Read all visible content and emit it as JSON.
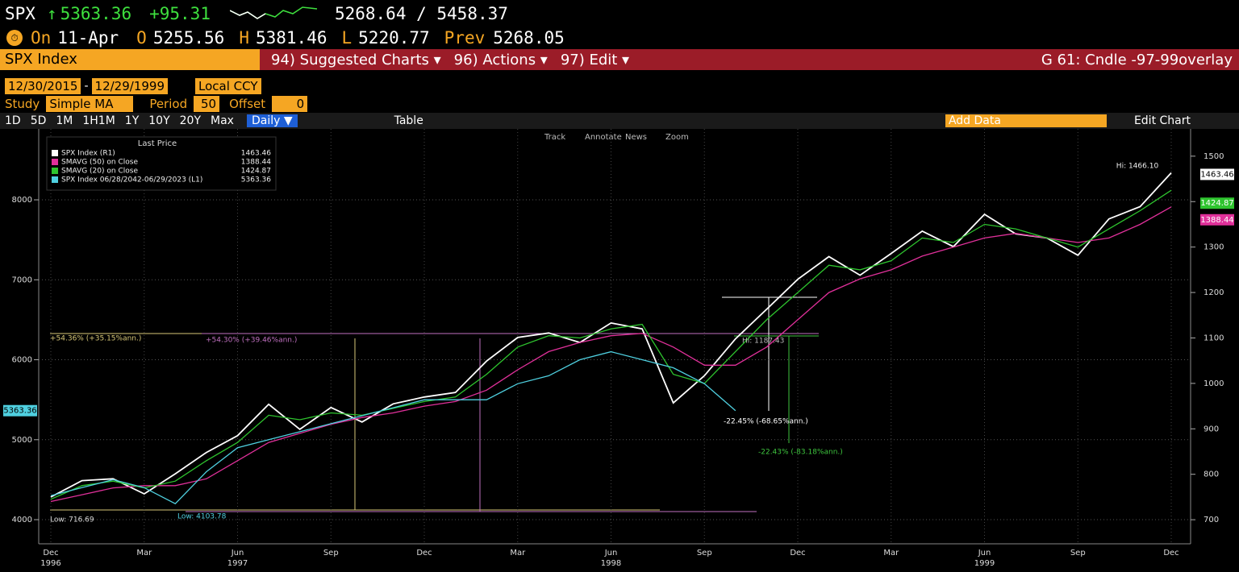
{
  "header": {
    "symbol": "SPX",
    "arrow": "↑",
    "last": "5363.36",
    "change": "+95.31",
    "range": "5268.64 / 5458.37"
  },
  "quote": {
    "on": "On",
    "date": "11-Apr",
    "o": "O",
    "open": "5255.56",
    "h": "H",
    "high": "5381.46",
    "l": "L",
    "low": "5220.77",
    "prev": "Prev",
    "prev_value": "5268.05"
  },
  "menu": {
    "ticker": "SPX Index",
    "items": [
      "94) Suggested Charts ▾",
      "96) Actions ▾",
      "97) Edit ▾"
    ],
    "chart_name": "G 61: Cndle -97-99overlay"
  },
  "controls": {
    "start": "12/30/2015",
    "dash": "-",
    "end": "12/29/1999",
    "currency": "Local CCY",
    "study": "Study",
    "study_value": "Simple MA",
    "period": "Period",
    "period_value": "50",
    "offset": "Offset",
    "offset_value": "0"
  },
  "toolbar": {
    "periods": [
      "1D",
      "5D",
      "1M",
      "1H1M",
      "1Y",
      "10Y",
      "20Y",
      "Max"
    ],
    "frequency": "Daily ▼",
    "table": "Table",
    "add_data": "Add Data",
    "edit_chart": "Edit Chart",
    "tools": [
      "Track",
      "Annotate",
      "News",
      "Zoom"
    ]
  },
  "chart_data": {
    "type": "line",
    "legend_title": "Last Price",
    "legend": [
      {
        "name": "SPX Index  (R1)",
        "value": "1463.46"
      },
      {
        "name": "SMAVG (50)  on Close",
        "value": "1388.44"
      },
      {
        "name": "SMAVG (20)  on Close",
        "value": "1424.87"
      },
      {
        "name": "SPX Index 06/28/2042-06/29/2023  (L1)",
        "value": "5363.36"
      }
    ],
    "categories": [
      "Dec",
      null,
      null,
      "Mar",
      null,
      null,
      "Jun",
      null,
      null,
      "Sep",
      null,
      null,
      "Dec",
      null,
      null,
      "Mar",
      null,
      null,
      "Jun",
      null,
      null,
      "Sep",
      null,
      null,
      "Dec",
      null,
      null,
      "Mar",
      null,
      null,
      "Jun",
      null,
      null,
      "Sep",
      null,
      null,
      "Dec"
    ],
    "year_labels": [
      "1996",
      null,
      null,
      null,
      null,
      null,
      "1997",
      null,
      null,
      null,
      null,
      null,
      null,
      null,
      null,
      null,
      null,
      null,
      "1998",
      null,
      null,
      null,
      null,
      null,
      null,
      null,
      null,
      null,
      null,
      null,
      "1999",
      null,
      null,
      null,
      null,
      null,
      null
    ],
    "series": [
      {
        "name": "SPX Index",
        "color": "#ffffff",
        "axis": "y2",
        "values": [
          750,
          786,
          790,
          757,
          801,
          848,
          885,
          954,
          899,
          947,
          915,
          955,
          970,
          980,
          1049,
          1101,
          1111,
          1090,
          1133,
          1120,
          957,
          1017,
          1098,
          1163,
          1229,
          1279,
          1238,
          1286,
          1335,
          1301,
          1372,
          1329,
          1320,
          1282,
          1362,
          1389,
          1463.46
        ]
      },
      {
        "name": "SMAVG (50)",
        "color": "#e0309a",
        "axis": "y2",
        "values": [
          740,
          755,
          770,
          775,
          775,
          790,
          830,
          870,
          890,
          910,
          925,
          935,
          950,
          960,
          985,
          1030,
          1070,
          1090,
          1105,
          1110,
          1080,
          1040,
          1040,
          1080,
          1140,
          1200,
          1230,
          1250,
          1280,
          1300,
          1320,
          1330,
          1320,
          1310,
          1320,
          1350,
          1388.44
        ]
      },
      {
        "name": "SMAVG (20)",
        "color": "#2ec42e",
        "axis": "y2",
        "values": [
          745,
          775,
          785,
          770,
          785,
          830,
          870,
          930,
          920,
          935,
          930,
          945,
          960,
          970,
          1020,
          1080,
          1105,
          1100,
          1120,
          1130,
          1020,
          1000,
          1070,
          1140,
          1200,
          1260,
          1250,
          1270,
          1320,
          1310,
          1350,
          1340,
          1320,
          1300,
          1340,
          1380,
          1424.87
        ]
      },
      {
        "name": "SPX Index overlay",
        "color": "#4fd0e0",
        "values": [
          4300,
          4400,
          4500,
          4400,
          4200,
          4600,
          4900,
          5000,
          5100,
          5200,
          5300,
          5400,
          5500,
          5500,
          5500,
          5700,
          5800,
          6000,
          6100,
          6000,
          5900,
          5700,
          5363.36,
          null,
          null,
          null,
          null,
          null,
          null,
          null,
          null,
          null,
          null,
          null,
          null,
          null,
          null
        ]
      }
    ],
    "ylim": [
      3698,
      8887
    ],
    "yticks": [
      4000,
      5000,
      6000,
      7000,
      8000
    ],
    "y2lim": [
      647,
      1560
    ],
    "y2ticks": [
      700,
      800,
      900,
      1000,
      1100,
      1200,
      1300,
      1400,
      1500
    ],
    "grid": true,
    "annotations": [
      "Hi: 1466.10",
      "Low: 716.69",
      "Low: 4103.78",
      "+54.36% (+35.15%ann.)",
      "+54.30% (+39.46%ann.)",
      "-22.45% (-68.65%ann.)",
      "-22.43% (-83.18%ann.)",
      "Hi: 1187.43"
    ]
  }
}
